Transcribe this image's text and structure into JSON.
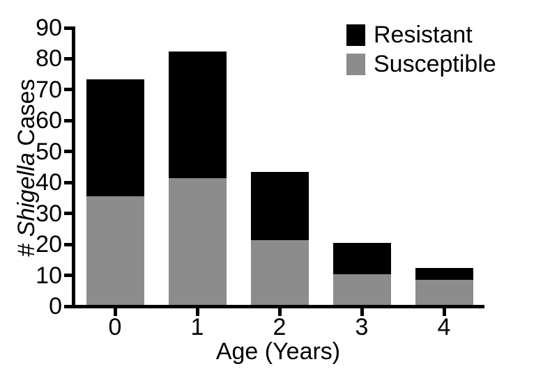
{
  "figure": {
    "background": "#ffffff",
    "ylabel": {
      "prefix": "# ",
      "italic": "Shigella",
      "suffix": " Cases"
    },
    "xlabel": "Age (Years)"
  },
  "chart_data": {
    "type": "bar",
    "stacked": true,
    "title": "",
    "xlabel": "Age (Years)",
    "ylabel": "# Shigella Cases",
    "categories": [
      "0",
      "1",
      "2",
      "3",
      "4"
    ],
    "series": [
      {
        "name": "Resistant",
        "color": "#000000",
        "values": [
          38,
          41,
          22,
          10,
          4
        ]
      },
      {
        "name": "Susceptible",
        "color": "#8c8c8c",
        "values": [
          35,
          41,
          21,
          10,
          8
        ]
      }
    ],
    "totals": [
      73,
      82,
      43,
      20,
      12
    ],
    "ylim": [
      0,
      90
    ],
    "ytick_step": 10,
    "yticks": [
      0,
      10,
      20,
      30,
      40,
      50,
      60,
      70,
      80,
      90
    ],
    "grid": false,
    "legend_position": "top-right",
    "axis_color": "#000000"
  }
}
